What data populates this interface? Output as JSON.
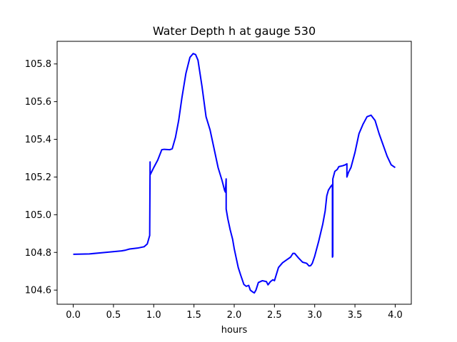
{
  "chart_data": {
    "type": "line",
    "title": "Water Depth h at gauge 530",
    "xlabel": "hours",
    "ylabel": "",
    "xlim": [
      -0.2,
      4.2
    ],
    "ylim": [
      104.525,
      105.92
    ],
    "xticks": [
      0.0,
      0.5,
      1.0,
      1.5,
      2.0,
      2.5,
      3.0,
      3.5,
      4.0
    ],
    "xtick_labels": [
      "0.0",
      "0.5",
      "1.0",
      "1.5",
      "2.0",
      "2.5",
      "3.0",
      "3.5",
      "4.0"
    ],
    "yticks": [
      104.6,
      104.8,
      105.0,
      105.2,
      105.4,
      105.6,
      105.8
    ],
    "ytick_labels": [
      "104.6",
      "104.8",
      "105.0",
      "105.2",
      "105.4",
      "105.6",
      "105.8"
    ],
    "grid": false,
    "series": [
      {
        "color": "#0000ff",
        "x": [
          0.0,
          0.2,
          0.4,
          0.6,
          0.65,
          0.7,
          0.8,
          0.88,
          0.92,
          0.95,
          0.955,
          0.955,
          0.96,
          0.96,
          1.0,
          1.05,
          1.1,
          1.13,
          1.2,
          1.23,
          1.27,
          1.31,
          1.35,
          1.4,
          1.45,
          1.49,
          1.52,
          1.55,
          1.6,
          1.65,
          1.7,
          1.75,
          1.8,
          1.85,
          1.88,
          1.89,
          1.9,
          1.9,
          1.92,
          1.95,
          1.98,
          2.0,
          2.02,
          2.05,
          2.08,
          2.12,
          2.15,
          2.18,
          2.2,
          2.23,
          2.25,
          2.27,
          2.3,
          2.35,
          2.4,
          2.42,
          2.45,
          2.48,
          2.5,
          2.55,
          2.6,
          2.65,
          2.7,
          2.73,
          2.75,
          2.8,
          2.85,
          2.9,
          2.93,
          2.95,
          2.97,
          3.0,
          3.05,
          3.1,
          3.13,
          3.15,
          3.17,
          3.2,
          3.22,
          3.22,
          3.225,
          3.225,
          3.25,
          3.28,
          3.3,
          3.35,
          3.38,
          3.4,
          3.4,
          3.42,
          3.45,
          3.5,
          3.55,
          3.6,
          3.65,
          3.7,
          3.75,
          3.8,
          3.85,
          3.9,
          3.95,
          4.0
        ],
        "y": [
          104.79,
          104.792,
          104.8,
          104.808,
          104.812,
          104.818,
          104.823,
          104.83,
          104.845,
          104.89,
          105.28,
          105.21,
          105.22,
          105.215,
          105.25,
          105.29,
          105.345,
          105.347,
          105.345,
          105.35,
          105.41,
          105.5,
          105.62,
          105.75,
          105.835,
          105.855,
          105.85,
          105.82,
          105.68,
          105.52,
          105.45,
          105.35,
          105.25,
          105.18,
          105.13,
          105.12,
          105.19,
          105.03,
          104.98,
          104.92,
          104.87,
          104.82,
          104.78,
          104.72,
          104.68,
          104.63,
          104.62,
          104.625,
          104.6,
          104.59,
          104.585,
          104.6,
          104.64,
          104.65,
          104.645,
          104.628,
          104.645,
          104.655,
          104.65,
          104.72,
          104.745,
          104.76,
          104.775,
          104.795,
          104.795,
          104.77,
          104.748,
          104.742,
          104.728,
          104.73,
          104.742,
          104.78,
          104.86,
          104.95,
          105.02,
          105.1,
          105.13,
          105.15,
          105.16,
          104.775,
          104.78,
          105.19,
          105.23,
          105.24,
          105.255,
          105.26,
          105.265,
          105.27,
          105.2,
          105.225,
          105.25,
          105.33,
          105.43,
          105.48,
          105.52,
          105.528,
          105.5,
          105.43,
          105.37,
          105.31,
          105.265,
          105.25
        ]
      }
    ]
  }
}
